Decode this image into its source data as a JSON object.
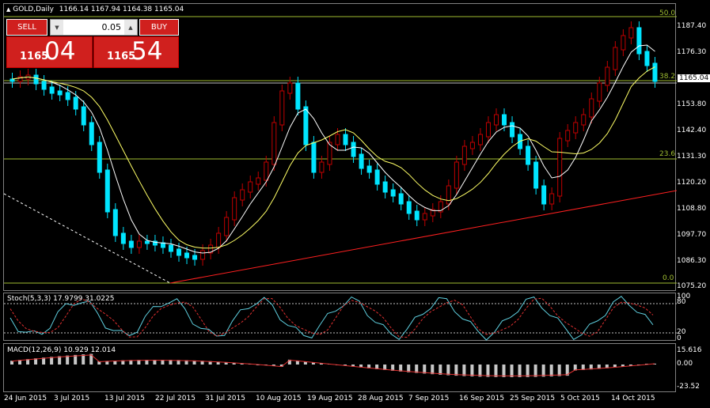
{
  "header": {
    "symbol": "GOLD,Daily",
    "ohlc": "1166.14 1167.94 1164.38 1165.04"
  },
  "one_click_trading": {
    "sell_label": "SELL",
    "buy_label": "BUY",
    "lot_value": "0.05",
    "sell_price_small": "1165",
    "sell_price_big": "04",
    "buy_price_small": "1165",
    "buy_price_big": "54"
  },
  "price_axis": [
    "1187.40",
    "1176.30",
    "1165.04",
    "1153.80",
    "1142.40",
    "1131.30",
    "1120.20",
    "1108.80",
    "1097.70",
    "1086.30",
    "1075.20"
  ],
  "fib_levels": [
    "50.0",
    "38.2",
    "23.6",
    "0.0"
  ],
  "stoch": {
    "label": "Stoch(5,3,3) 17.9799 31.0225",
    "axis": [
      "100",
      "80",
      "20",
      "0"
    ]
  },
  "macd": {
    "label": "MACD(12,26,9) 10.929 12.014",
    "axis": [
      "15.616",
      "0.00",
      "-23.52"
    ]
  },
  "date_axis": [
    "24 Jun 2015",
    "3 Jul 2015",
    "13 Jul 2015",
    "22 Jul 2015",
    "31 Jul 2015",
    "10 Aug 2015",
    "19 Aug 2015",
    "28 Aug 2015",
    "7 Sep 2015",
    "16 Sep 2015",
    "25 Sep 2015",
    "5 Oct 2015",
    "14 Oct 2015"
  ],
  "colors": {
    "bull": "#c00000",
    "bear": "#00e5ff",
    "fib": "#9fbd31",
    "trend": "#ff2020",
    "ma_fast": "#ffffff",
    "ma_slow": "#ffff66"
  }
}
